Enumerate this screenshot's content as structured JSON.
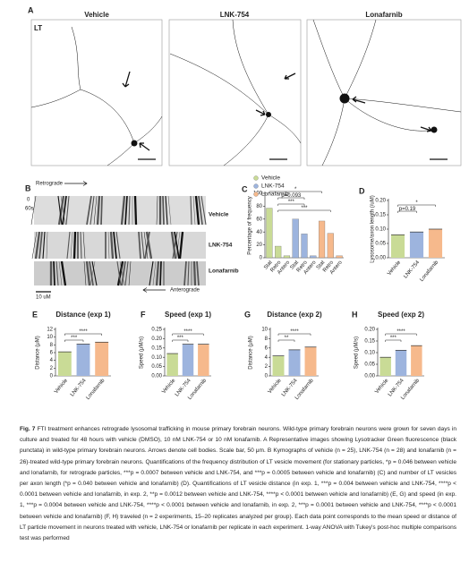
{
  "panel_a": {
    "letter": "A",
    "inset": "LT",
    "titles": [
      "Vehicle",
      "LNK-754",
      "Lonafarnib"
    ]
  },
  "panel_b": {
    "letter": "B",
    "direction_top": "Retrograde",
    "time_start": "0",
    "time_end": "60s",
    "rows": [
      "Vehicle",
      "LNK-754",
      "Lonafarnib"
    ],
    "scale": "10 uM",
    "direction_bottom": "Anterograde"
  },
  "chart_data": [
    {
      "type": "bar",
      "letter": "C",
      "ylabel": "Percentage of frequency",
      "categories": [
        "Stat",
        "Retro",
        "Antero"
      ],
      "series": [
        {
          "name": "Vehicle",
          "color": "#c9db96",
          "values": [
            77,
            18,
            3
          ]
        },
        {
          "name": "LNK-754",
          "color": "#9db4de",
          "values": [
            60,
            37,
            3
          ]
        },
        {
          "name": "Lonafarnib",
          "color": "#f6b98c",
          "values": [
            57,
            38,
            3
          ]
        }
      ],
      "ylim": [
        0,
        100
      ],
      "yticks": [
        0,
        20,
        40,
        60,
        80,
        100
      ],
      "annotations": [
        "*",
        "p=0.093",
        "***",
        "***"
      ]
    },
    {
      "type": "bar",
      "letter": "D",
      "ylabel": "Lysosome/axon length (/uM)",
      "categories": [
        "Vehicle",
        "LNK-754",
        "Lonafarnib"
      ],
      "values": [
        0.08,
        0.09,
        0.1
      ],
      "colors": [
        "#c9db96",
        "#9db4de",
        "#f6b98c"
      ],
      "ylim": [
        0,
        0.2
      ],
      "yticks": [
        {
          "value": 0,
          "label": "0.00"
        },
        {
          "value": 0.05,
          "label": "0.05"
        },
        {
          "value": 0.1,
          "label": "0.10"
        },
        {
          "value": 0.15,
          "label": "0.15"
        },
        {
          "value": 0.2,
          "label": "0.20"
        }
      ],
      "annotations": [
        "*",
        "p=0.19"
      ]
    },
    {
      "type": "bar",
      "letter": "E",
      "title": "Distance (exp 1)",
      "ylabel": "Distance (μM)",
      "categories": [
        "Vehicle",
        "LNK-754",
        "Lonafarnib"
      ],
      "values": [
        6.2,
        8.2,
        8.7
      ],
      "colors": [
        "#c9db96",
        "#9db4de",
        "#f6b98c"
      ],
      "ylim": [
        0,
        12
      ],
      "yticks": [
        0,
        2,
        4,
        6,
        8,
        10,
        12
      ],
      "annotations": [
        "****",
        "***"
      ]
    },
    {
      "type": "bar",
      "letter": "F",
      "title": "Speed (exp 1)",
      "ylabel": "Speed (μM/s)",
      "categories": [
        "Vehicle",
        "LNK-754",
        "Lonafarnib"
      ],
      "values": [
        0.12,
        0.17,
        0.17
      ],
      "colors": [
        "#c9db96",
        "#9db4de",
        "#f6b98c"
      ],
      "ylim": [
        0,
        0.25
      ],
      "yticks": [
        {
          "value": 0,
          "label": "0.00"
        },
        {
          "value": 0.05,
          "label": "0.05"
        },
        {
          "value": 0.1,
          "label": "0.10"
        },
        {
          "value": 0.15,
          "label": "0.15"
        },
        {
          "value": 0.2,
          "label": "0.20"
        },
        {
          "value": 0.25,
          "label": "0.25"
        }
      ],
      "annotations": [
        "****",
        "***"
      ]
    },
    {
      "type": "bar",
      "letter": "G",
      "title": "Distance (exp 2)",
      "ylabel": "Distance (μM)",
      "categories": [
        "Vehicle",
        "LNK-754",
        "Lonafarnib"
      ],
      "values": [
        4.3,
        5.6,
        6.2
      ],
      "colors": [
        "#c9db96",
        "#9db4de",
        "#f6b98c"
      ],
      "ylim": [
        0,
        10
      ],
      "yticks": [
        0,
        2,
        4,
        6,
        8,
        10
      ],
      "annotations": [
        "****",
        "**"
      ]
    },
    {
      "type": "bar",
      "letter": "H",
      "title": "Speed (exp 2)",
      "ylabel": "Speed (μM/s)",
      "categories": [
        "Vehicle",
        "LNK-754",
        "Lonafarnib"
      ],
      "values": [
        0.08,
        0.11,
        0.13
      ],
      "colors": [
        "#c9db96",
        "#9db4de",
        "#f6b98c"
      ],
      "ylim": [
        0,
        0.2
      ],
      "yticks": [
        {
          "value": 0,
          "label": "0.00"
        },
        {
          "value": 0.05,
          "label": "0.05"
        },
        {
          "value": 0.1,
          "label": "0.10"
        },
        {
          "value": 0.15,
          "label": "0.15"
        },
        {
          "value": 0.2,
          "label": "0.20"
        }
      ],
      "annotations": [
        "****",
        "***"
      ]
    }
  ],
  "caption": {
    "label": "Fig. 7",
    "text": "FTI treatment enhances retrograde lysosomal trafficking in mouse primary forebrain neurons. Wild-type primary forebrain neurons were grown for seven days in culture and treated for 48 hours with vehicle (DMSO), 10 nM LNK-754 or 10 nM lonafarnib. A Representative images showing Lysotracker Green fluorescence (black punctata) in wild-type primary forebrain neurons. Arrows denote cell bodies. Scale bar, 50 μm. B Kymographs of vehicle (n = 25), LNK-754 (n = 28) and lonafarnib (n = 26)-treated wild-type primary forebrain neurons. Quantifications of the frequency distribution of LT vesicle movement (for stationary particles, *p = 0.046 between vehicle and lonafarnib, for retrograde particles, ***p = 0.0007 between vehicle and LNK-754, and ***p = 0.0005 between vehicle and lonafarnib) (C) and number of LT vesicles per axon length (*p = 0.040 between vehicle and lonafarnib) (D). Quantifications of LT vesicle distance (in exp. 1, ***p = 0.004 between vehicle and LNK-754, ****p < 0.0001 between vehicle and lonafarnib, in exp. 2, **p = 0.0012 between vehicle and LNK-754, ****p < 0.0001 between vehicle and lonafarnib) (E, G) and speed (in exp. 1, ***p = 0.0004 between vehicle and LNK-754, ****p < 0.0001 between vehicle and lonafarnib, in exp. 2, ***p = 0.0001 between vehicle and LNK-754, ****p < 0.0001 between vehicle and lonafarnib) (F, H) traveled (n = 2 experiments, 15–20 replicates analyzed per group). Each data point corresponds to the mean speed or distance of LT particle movement in neurons treated with vehicle, LNK-754 or lonafarnib per replicate in each experiment. 1-way ANOVA with Tukey's post-hoc multiple comparisons test was performed"
  }
}
